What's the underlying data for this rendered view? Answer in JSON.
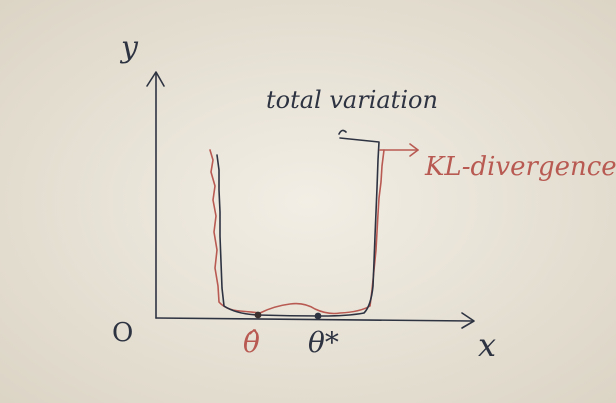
{
  "diagram": {
    "axis_labels": {
      "y": "y",
      "x": "x",
      "origin": "O"
    },
    "curves": [
      {
        "label": "total variation",
        "color": "#2e3342"
      },
      {
        "label": "KL-divergence",
        "color": "#b85a52"
      }
    ],
    "points": [
      {
        "label": "θ̂",
        "color": "#b85a52"
      },
      {
        "label": "θ*",
        "color": "#2e3342"
      }
    ]
  }
}
